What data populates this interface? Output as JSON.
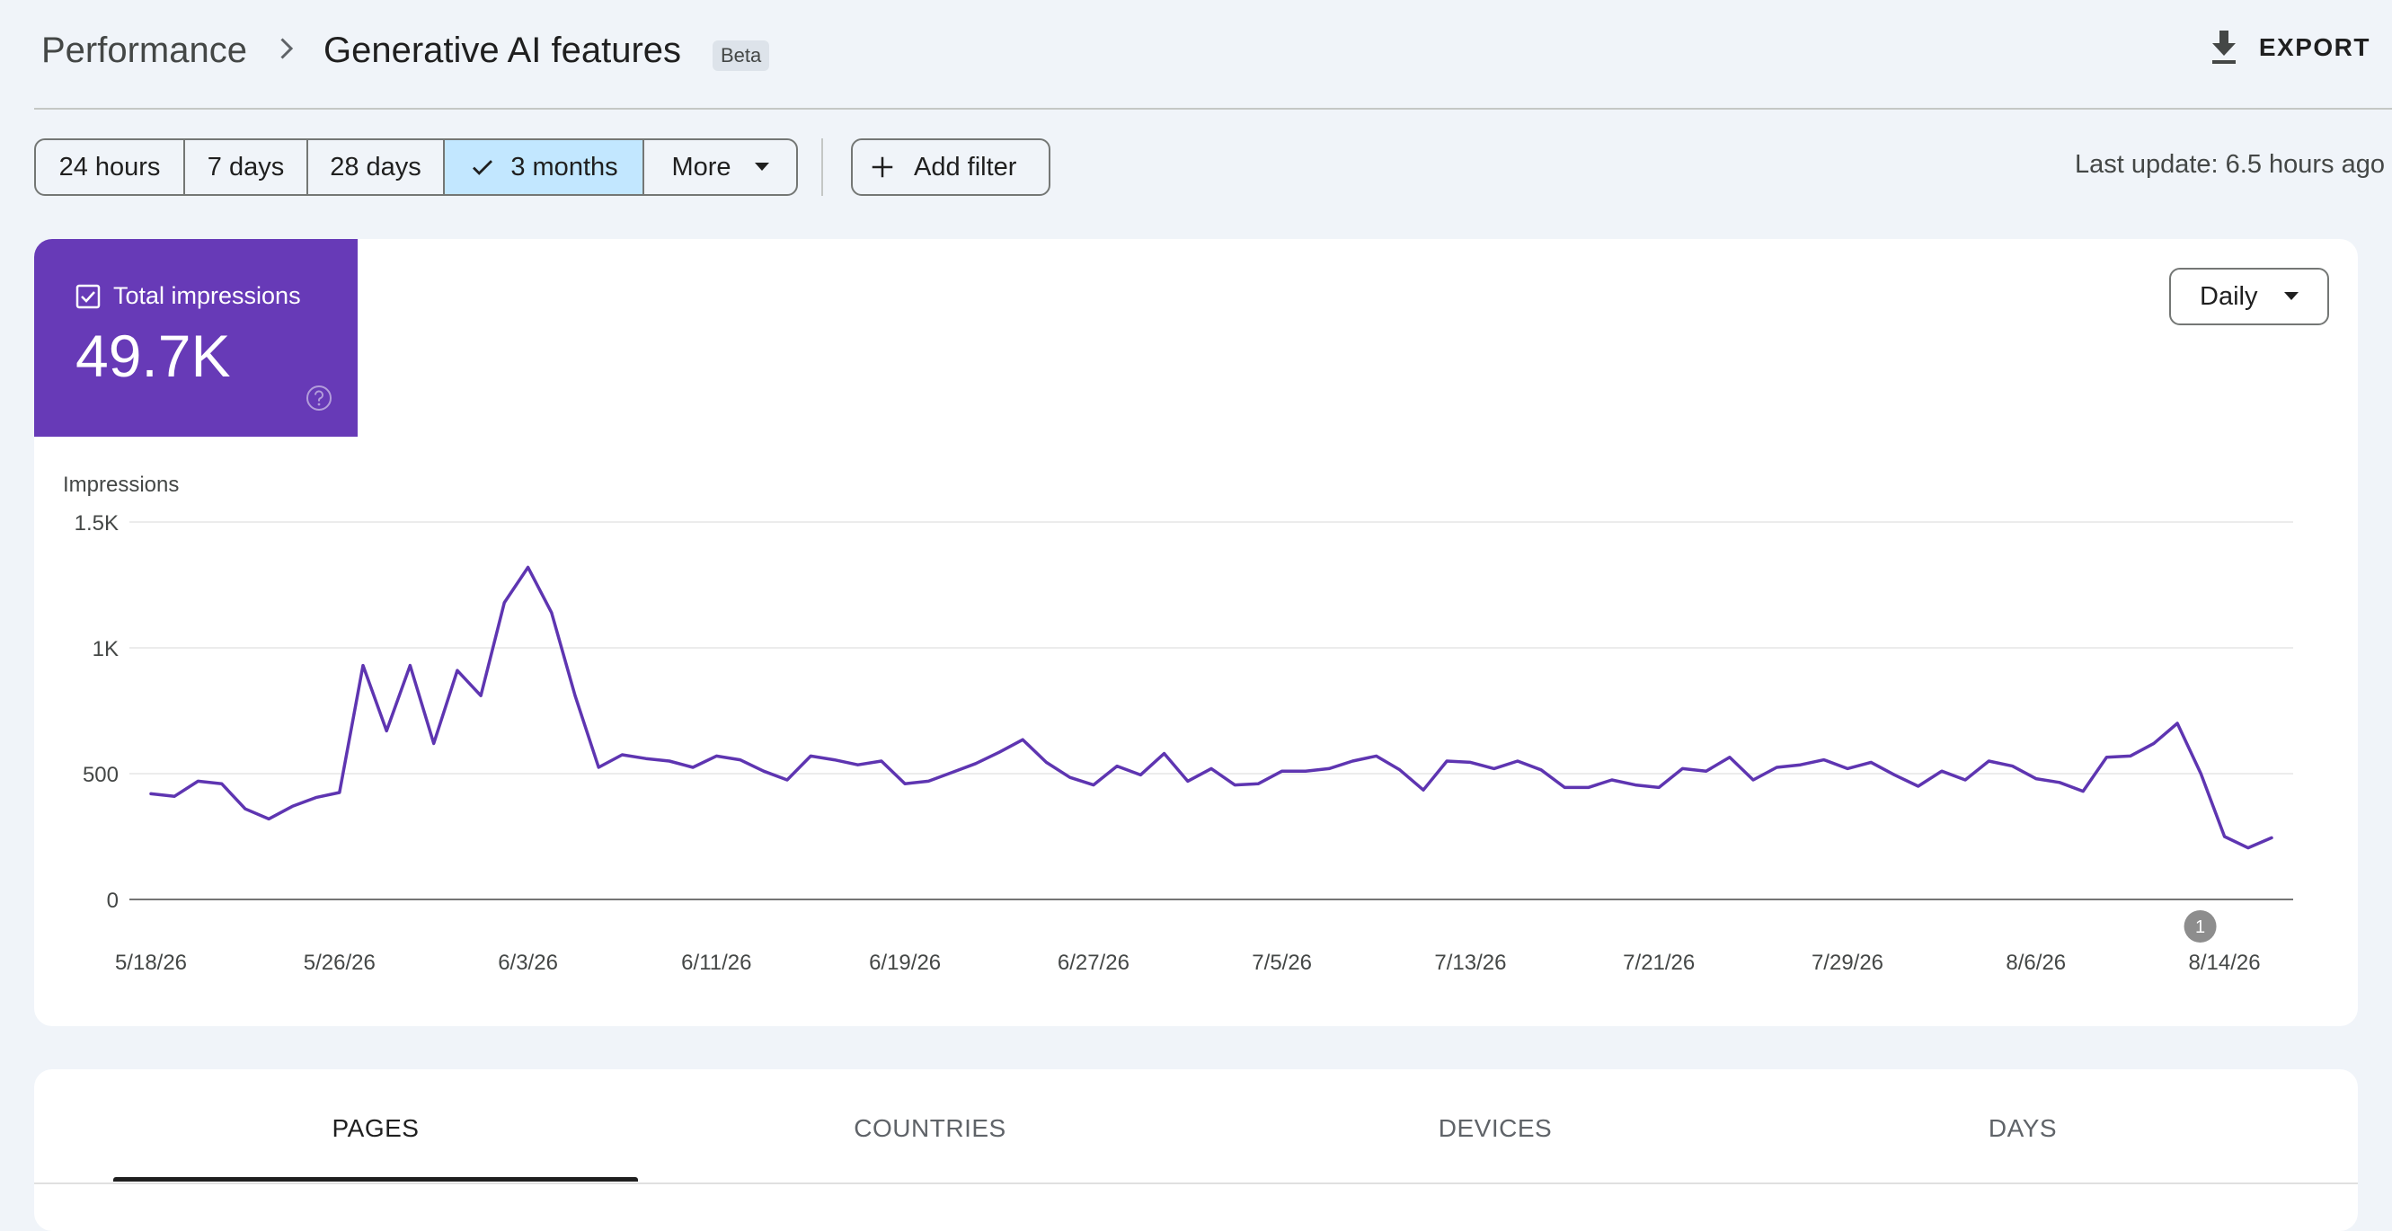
{
  "header": {
    "breadcrumb_parent": "Performance",
    "title": "Generative AI features",
    "badge": "Beta",
    "export_label": "EXPORT"
  },
  "filters": {
    "ranges": [
      {
        "label": "24 hours",
        "selected": false
      },
      {
        "label": "7 days",
        "selected": false
      },
      {
        "label": "28 days",
        "selected": false
      },
      {
        "label": "3 months",
        "selected": true
      },
      {
        "label": "More",
        "selected": false
      }
    ],
    "add_filter_label": "Add filter",
    "last_update": "Last update: 6.5 hours ago"
  },
  "metric": {
    "label": "Total impressions",
    "value": "49.7K",
    "checked": true,
    "color": "#673ab7"
  },
  "granularity": {
    "selected": "Daily"
  },
  "chart_data": {
    "type": "line",
    "ylabel": "Impressions",
    "ylim": [
      0,
      1500
    ],
    "yticks": [
      {
        "value": 0,
        "label": "0"
      },
      {
        "value": 500,
        "label": "500"
      },
      {
        "value": 1000,
        "label": "1K"
      },
      {
        "value": 1500,
        "label": "1.5K"
      }
    ],
    "xticks": [
      {
        "index": 0,
        "label": "5/18/26"
      },
      {
        "index": 8,
        "label": "5/26/26"
      },
      {
        "index": 16,
        "label": "6/3/26"
      },
      {
        "index": 24,
        "label": "6/11/26"
      },
      {
        "index": 32,
        "label": "6/19/26"
      },
      {
        "index": 40,
        "label": "6/27/26"
      },
      {
        "index": 48,
        "label": "7/5/26"
      },
      {
        "index": 56,
        "label": "7/13/26"
      },
      {
        "index": 64,
        "label": "7/21/26"
      },
      {
        "index": 72,
        "label": "7/29/26"
      },
      {
        "index": 80,
        "label": "8/6/26"
      },
      {
        "index": 88,
        "label": "8/14/26"
      }
    ],
    "series": [
      {
        "color": "#5e35b1",
        "values": [
          420,
          410,
          470,
          460,
          360,
          320,
          370,
          405,
          425,
          930,
          670,
          930,
          620,
          910,
          810,
          1180,
          1320,
          1140,
          810,
          525,
          575,
          560,
          550,
          525,
          570,
          555,
          510,
          475,
          570,
          555,
          535,
          550,
          460,
          470,
          505,
          540,
          585,
          635,
          545,
          485,
          455,
          530,
          495,
          580,
          470,
          520,
          455,
          460,
          510,
          510,
          520,
          550,
          570,
          515,
          435,
          550,
          545,
          520,
          550,
          515,
          445,
          445,
          475,
          455,
          445,
          520,
          510,
          565,
          475,
          525,
          535,
          555,
          520,
          545,
          495,
          450,
          510,
          475,
          550,
          530,
          480,
          465,
          430,
          565,
          570,
          620,
          700,
          500,
          250,
          205,
          245
        ]
      }
    ],
    "annotations": [
      {
        "index": 88,
        "label": "1"
      }
    ],
    "grid": true
  },
  "tabs": [
    {
      "label": "PAGES",
      "active": true
    },
    {
      "label": "COUNTRIES",
      "active": false
    },
    {
      "label": "DEVICES",
      "active": false
    },
    {
      "label": "DAYS",
      "active": false
    }
  ]
}
